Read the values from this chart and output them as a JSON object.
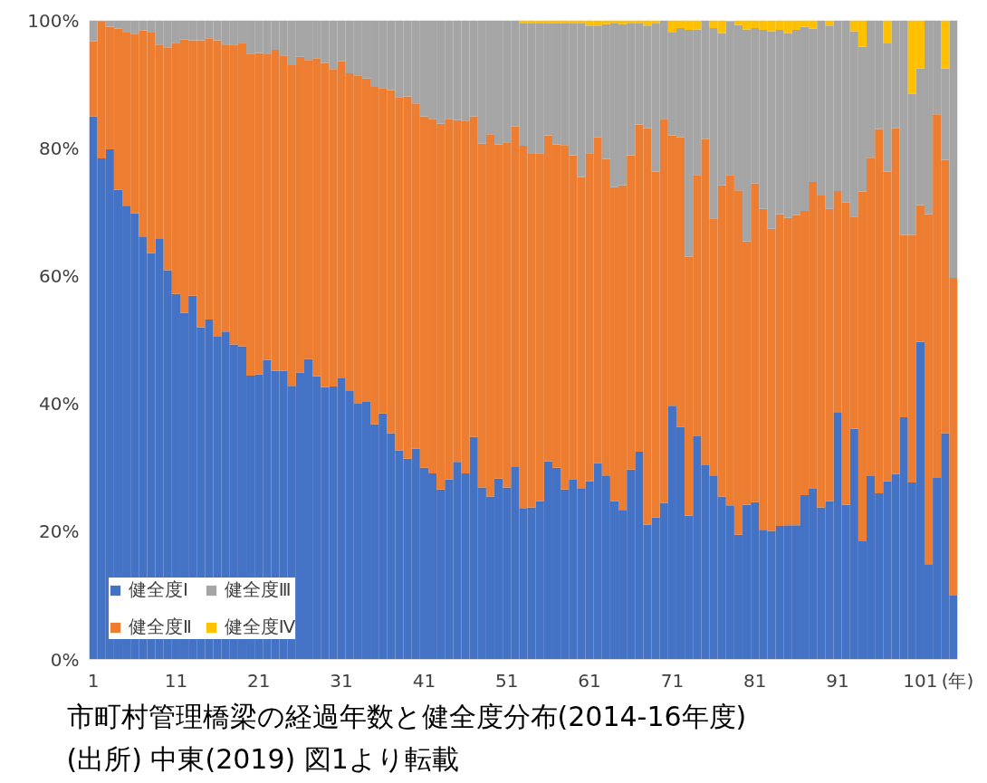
{
  "chart_data": {
    "type": "bar",
    "stacked": true,
    "title": "市町村管理橋梁の経過年数と健全度分布(2014-16年度)",
    "annotations": [
      "(出所) 中東(2019) 図1より転載"
    ],
    "xlabel": "(年)",
    "x": [
      1,
      2,
      3,
      4,
      5,
      6,
      7,
      8,
      9,
      10,
      11,
      12,
      13,
      14,
      15,
      16,
      17,
      18,
      19,
      20,
      21,
      22,
      23,
      24,
      25,
      26,
      27,
      28,
      29,
      30,
      31,
      32,
      33,
      34,
      35,
      36,
      37,
      38,
      39,
      40,
      41,
      42,
      43,
      44,
      45,
      46,
      47,
      48,
      49,
      50,
      51,
      52,
      53,
      54,
      55,
      56,
      57,
      58,
      59,
      60,
      61,
      62,
      63,
      64,
      65,
      66,
      67,
      68,
      69,
      70,
      71,
      72,
      73,
      74,
      75,
      76,
      77,
      78,
      79,
      80,
      81,
      82,
      83,
      84,
      85,
      86,
      87,
      88,
      89,
      90,
      91,
      92,
      93,
      94,
      95,
      96,
      97,
      98,
      99,
      100,
      101,
      102,
      103,
      104,
      105
    ],
    "xlim": [
      0.5,
      105.5
    ],
    "xticks": [
      1,
      11,
      21,
      31,
      41,
      51,
      61,
      71,
      81,
      91,
      101
    ],
    "ylim": [
      0,
      100
    ],
    "yticks": [
      {
        "value": 0,
        "label": "0%"
      },
      {
        "value": 20,
        "label": "20%"
      },
      {
        "value": 40,
        "label": "40%"
      },
      {
        "value": 60,
        "label": "60%"
      },
      {
        "value": 80,
        "label": "80%"
      },
      {
        "value": 100,
        "label": "100%"
      }
    ],
    "grid": false,
    "legend": "bottom left",
    "series": [
      {
        "name": "健全度Ⅰ",
        "color": "#4472c4",
        "values": [
          85.0,
          78.4,
          79.8,
          73.5,
          71.0,
          69.8,
          66.2,
          63.6,
          65.8,
          60.9,
          57.2,
          54.2,
          56.9,
          52.0,
          53.2,
          50.5,
          51.3,
          49.3,
          49.0,
          44.4,
          44.6,
          46.9,
          45.2,
          45.2,
          42.8,
          44.9,
          47.0,
          44.3,
          42.6,
          42.7,
          44.1,
          42.0,
          40.0,
          40.3,
          36.8,
          38.5,
          35.4,
          32.7,
          31.4,
          33.0,
          30.0,
          29.1,
          26.6,
          28.2,
          30.9,
          29.1,
          34.8,
          26.9,
          25.5,
          28.3,
          26.9,
          30.2,
          23.7,
          23.8,
          24.8,
          31.0,
          30.0,
          26.6,
          28.1,
          26.8,
          27.9,
          30.7,
          28.8,
          24.8,
          23.4,
          29.7,
          32.5,
          21.1,
          22.2,
          24.5,
          39.7,
          36.4,
          22.5,
          34.9,
          30.4,
          28.8,
          25.5,
          24.1,
          19.5,
          24.2,
          24.6,
          20.3,
          20.1,
          20.9,
          21.0,
          21.0,
          25.7,
          26.7,
          23.8,
          24.8,
          38.7,
          24.2,
          36.1,
          18.6,
          28.8,
          26.0,
          27.9,
          29.0,
          37.9,
          27.7,
          49.7,
          14.9,
          28.4,
          35.4,
          10.0
        ]
      },
      {
        "name": "健全度Ⅱ",
        "color": "#ed7d31",
        "values": [
          11.7,
          21.4,
          19.2,
          25.2,
          27.1,
          28.1,
          32.2,
          34.5,
          30.4,
          34.9,
          39.3,
          42.8,
          40.0,
          44.9,
          44.0,
          46.4,
          44.8,
          46.9,
          47.5,
          50.4,
          50.3,
          47.8,
          50.2,
          49.3,
          50.2,
          49.4,
          46.8,
          49.8,
          50.7,
          49.7,
          49.5,
          49.7,
          51.4,
          50.6,
          52.8,
          50.9,
          53.7,
          55.3,
          56.7,
          54.0,
          55.0,
          55.5,
          57.2,
          56.4,
          53.5,
          55.2,
          50.2,
          53.8,
          56.7,
          52.3,
          54.0,
          53.2,
          56.7,
          55.3,
          54.4,
          51.0,
          50.6,
          53.9,
          50.8,
          48.7,
          51.3,
          51.0,
          49.5,
          49.1,
          50.8,
          49.2,
          51.2,
          62.0,
          54.1,
          60.1,
          42.3,
          45.3,
          40.5,
          40.9,
          51.0,
          40.2,
          48.7,
          51.7,
          53.9,
          41.2,
          49.9,
          50.2,
          47.3,
          48.8,
          48.1,
          48.5,
          44.5,
          48.0,
          48.8,
          45.7,
          34.6,
          47.3,
          33.2,
          54.6,
          49.7,
          57.0,
          48.4,
          54.1,
          28.5,
          38.7,
          21.4,
          54.8,
          56.9,
          42.8,
          49.7
        ]
      },
      {
        "name": "健全度Ⅲ",
        "color": "#a5a5a5",
        "values": [
          3.3,
          0.2,
          1.0,
          1.3,
          1.9,
          2.1,
          1.6,
          1.9,
          3.8,
          4.2,
          3.5,
          3.0,
          3.1,
          3.1,
          2.8,
          3.1,
          3.9,
          3.8,
          3.5,
          5.2,
          5.1,
          5.3,
          4.6,
          5.5,
          7.0,
          5.7,
          6.2,
          5.9,
          6.7,
          7.6,
          6.4,
          8.3,
          8.6,
          9.1,
          10.4,
          10.6,
          10.9,
          12.0,
          11.9,
          13.0,
          15.0,
          15.4,
          16.2,
          15.4,
          15.6,
          15.7,
          15.0,
          19.3,
          17.8,
          19.4,
          19.1,
          16.6,
          19.2,
          20.5,
          20.4,
          17.6,
          19.0,
          19.1,
          20.7,
          24.1,
          20.0,
          17.5,
          21.1,
          25.7,
          25.2,
          20.7,
          15.9,
          16.1,
          23.2,
          15.4,
          16.1,
          17.1,
          35.5,
          22.8,
          18.6,
          29.8,
          23.8,
          24.1,
          25.9,
          33.2,
          24.3,
          28.0,
          30.9,
          28.8,
          28.9,
          29.0,
          28.8,
          24.0,
          27.4,
          28.7,
          26.7,
          28.5,
          29.0,
          22.7,
          21.5,
          17.0,
          20.1,
          16.9,
          33.6,
          22.1,
          21.4,
          30.3,
          14.7,
          14.3,
          40.3
        ]
      },
      {
        "name": "健全度Ⅳ",
        "color": "#ffc000",
        "values": [
          0,
          0,
          0,
          0,
          0,
          0,
          0,
          0,
          0,
          0,
          0,
          0,
          0,
          0,
          0,
          0,
          0,
          0,
          0,
          0,
          0,
          0,
          0,
          0,
          0,
          0,
          0,
          0,
          0,
          0,
          0,
          0,
          0,
          0,
          0,
          0,
          0,
          0,
          0,
          0,
          0,
          0,
          0,
          0,
          0,
          0,
          0,
          0,
          0,
          0,
          0,
          0,
          0.4,
          0.4,
          0.4,
          0.4,
          0.4,
          0.4,
          0.4,
          0.4,
          0.8,
          0.8,
          0.6,
          0.4,
          0.6,
          0.4,
          0.4,
          0.8,
          0.5,
          0,
          1.9,
          1.2,
          1.5,
          1.4,
          0,
          1.4,
          2.0,
          0,
          0.7,
          1.4,
          1.2,
          1.5,
          1.7,
          1.5,
          2.0,
          1.5,
          1.0,
          1.3,
          0,
          0.8,
          0,
          0,
          1.7,
          4.1,
          0,
          0,
          3.6,
          0,
          0,
          11.5,
          7.5,
          0,
          0,
          7.5,
          0
        ]
      }
    ]
  }
}
